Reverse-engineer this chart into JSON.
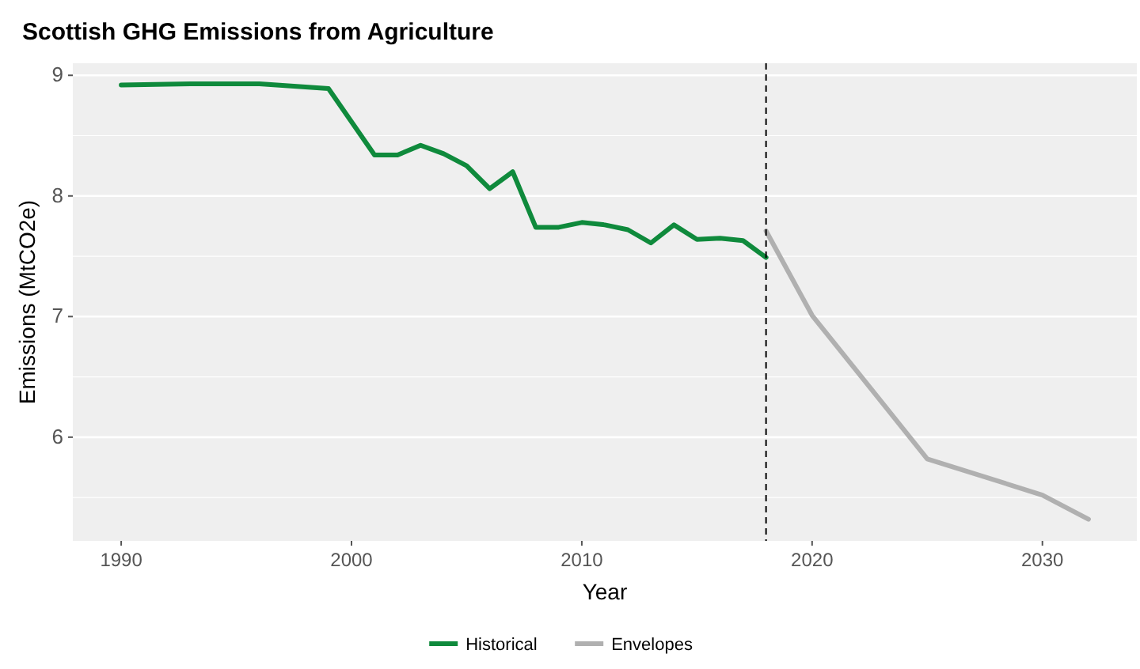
{
  "chart_data": {
    "type": "line",
    "title": "Scottish GHG Emissions from Agriculture",
    "xlabel": "Year",
    "ylabel": "Emissions (MtCO2e)",
    "xlim": [
      1987.9,
      2034.1
    ],
    "xticks": [
      1990,
      2000,
      2010,
      2020,
      2030
    ],
    "ylim": [
      5.14,
      9.1
    ],
    "yticks": [
      6,
      7,
      8,
      9
    ],
    "grid": "y",
    "legend": "bottom",
    "line_style": "solid",
    "ref_lines": [
      {
        "axis": "x",
        "value": 2018,
        "line_style": "dashed",
        "color": "#000000"
      }
    ],
    "series": [
      {
        "name": "Historical",
        "color": "#0f8a3c",
        "x": [
          1990,
          1993,
          1996,
          1999,
          2001,
          2002,
          2003,
          2004,
          2005,
          2006,
          2007,
          2008,
          2009,
          2010,
          2011,
          2012,
          2013,
          2014,
          2015,
          2016,
          2017,
          2018
        ],
        "values": [
          8.92,
          8.93,
          8.93,
          8.89,
          8.34,
          8.34,
          8.42,
          8.35,
          8.25,
          8.06,
          8.2,
          7.74,
          7.74,
          7.78,
          7.76,
          7.72,
          7.61,
          7.76,
          7.64,
          7.65,
          7.63,
          7.49
        ]
      },
      {
        "name": "Envelopes",
        "color": "#b0b0b0",
        "x": [
          2018,
          2020,
          2025,
          2030,
          2032
        ],
        "values": [
          7.71,
          7.01,
          5.82,
          5.52,
          5.32
        ]
      }
    ]
  }
}
